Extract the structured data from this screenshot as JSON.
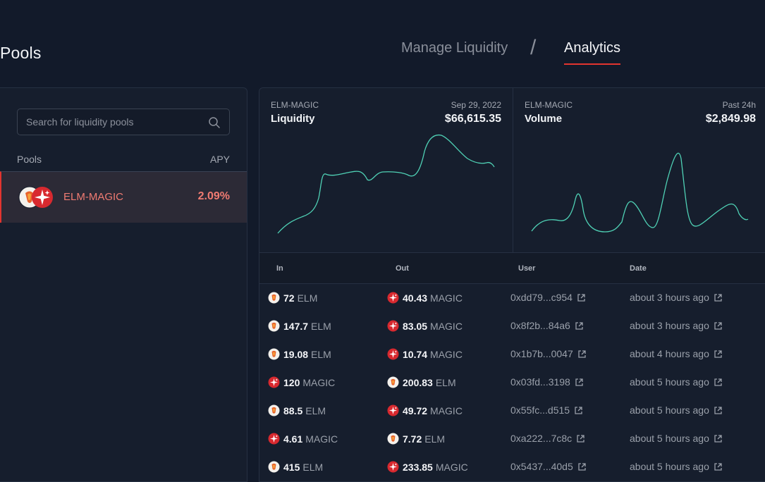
{
  "page": {
    "title": "Pools"
  },
  "nav": {
    "manage": "Manage Liquidity",
    "separator": "/",
    "analytics": "Analytics"
  },
  "sidebar": {
    "search_placeholder": "Search for liquidity pools",
    "col_pools": "Pools",
    "col_apy": "APY",
    "pools": [
      {
        "name": "ELM-MAGIC",
        "apy": "2.09%"
      }
    ]
  },
  "charts": {
    "liquidity": {
      "pair": "ELM-MAGIC",
      "title": "Liquidity",
      "meta": "Sep 29, 2022",
      "value": "$66,615.35"
    },
    "volume": {
      "pair": "ELM-MAGIC",
      "title": "Volume",
      "meta": "Past 24h",
      "value": "$2,849.98"
    }
  },
  "colors": {
    "accent": "#e2342f",
    "line": "#4fd1b5",
    "pool_text": "#f07b72"
  },
  "table": {
    "headers": {
      "in": "In",
      "out": "Out",
      "user": "User",
      "date": "Date"
    },
    "rows": [
      {
        "in_tok": "elm",
        "in_amt": "72",
        "in_sym": "ELM",
        "out_tok": "magic",
        "out_amt": "40.43",
        "out_sym": "MAGIC",
        "user": "0xdd79...c954",
        "date": "about 3 hours ago"
      },
      {
        "in_tok": "elm",
        "in_amt": "147.7",
        "in_sym": "ELM",
        "out_tok": "magic",
        "out_amt": "83.05",
        "out_sym": "MAGIC",
        "user": "0x8f2b...84a6",
        "date": "about 3 hours ago"
      },
      {
        "in_tok": "elm",
        "in_amt": "19.08",
        "in_sym": "ELM",
        "out_tok": "magic",
        "out_amt": "10.74",
        "out_sym": "MAGIC",
        "user": "0x1b7b...0047",
        "date": "about 4 hours ago"
      },
      {
        "in_tok": "magic",
        "in_amt": "120",
        "in_sym": "MAGIC",
        "out_tok": "elm",
        "out_amt": "200.83",
        "out_sym": "ELM",
        "user": "0x03fd...3198",
        "date": "about 5 hours ago"
      },
      {
        "in_tok": "elm",
        "in_amt": "88.5",
        "in_sym": "ELM",
        "out_tok": "magic",
        "out_amt": "49.72",
        "out_sym": "MAGIC",
        "user": "0x55fc...d515",
        "date": "about 5 hours ago"
      },
      {
        "in_tok": "magic",
        "in_amt": "4.61",
        "in_sym": "MAGIC",
        "out_tok": "elm",
        "out_amt": "7.72",
        "out_sym": "ELM",
        "user": "0xa222...7c8c",
        "date": "about 5 hours ago"
      },
      {
        "in_tok": "elm",
        "in_amt": "415",
        "in_sym": "ELM",
        "out_tok": "magic",
        "out_amt": "233.85",
        "out_sym": "MAGIC",
        "user": "0x5437...40d5",
        "date": "about 5 hours ago"
      }
    ]
  }
}
